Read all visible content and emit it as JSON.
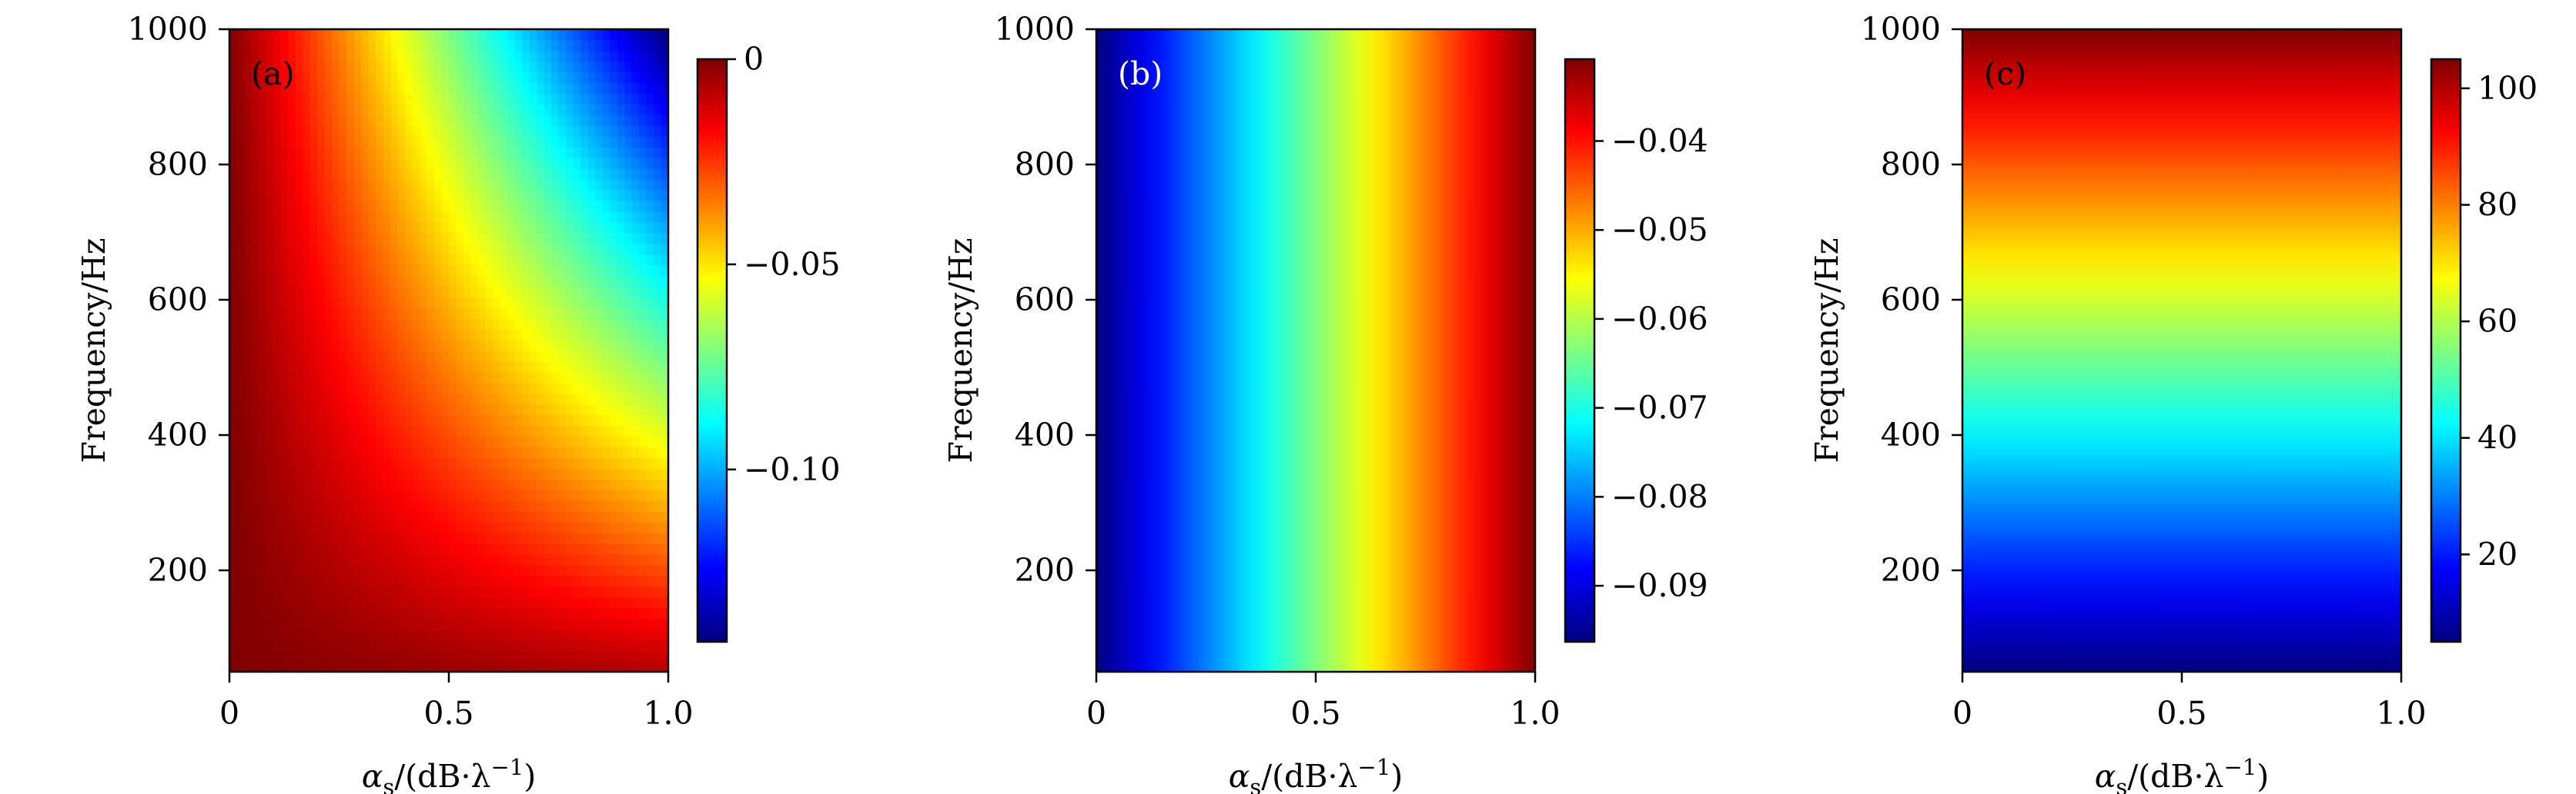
{
  "colormap_jet": [
    "#00007f",
    "#0000ff",
    "#007fff",
    "#00ffff",
    "#7fff7f",
    "#ffff00",
    "#ff7f00",
    "#ff0000",
    "#7f0000"
  ],
  "chart_data": [
    {
      "type": "heatmap",
      "panel_label": "(a)",
      "panel_label_color": "#000000",
      "xlabel": "α_s/(dB·λ^-1)",
      "xlabel_parts": {
        "base": "α",
        "sub": "s",
        "middle": "/(dB·λ",
        "sup": "−1",
        "end": ")"
      },
      "ylabel": "Frequency/Hz",
      "xlim": [
        0,
        1.0
      ],
      "ylim": [
        50,
        1000
      ],
      "xticks": [
        0,
        0.5,
        1.0
      ],
      "xtick_labels": [
        "0",
        "0.5",
        "1.0"
      ],
      "yticks": [
        200,
        400,
        600,
        800,
        1000
      ],
      "ytick_labels": [
        "200",
        "400",
        "600",
        "800",
        "1000"
      ],
      "field": "product",
      "colorbar": {
        "range": [
          -0.142,
          0
        ],
        "ticks": [
          0,
          -0.05,
          -0.1
        ],
        "tick_labels": [
          "0",
          "−0.05",
          "−0.10"
        ]
      }
    },
    {
      "type": "heatmap",
      "panel_label": "(b)",
      "panel_label_color": "#ffffff",
      "xlabel": "α_s/(dB·λ^-1)",
      "xlabel_parts": {
        "base": "α",
        "sub": "s",
        "middle": "/(dB·λ",
        "sup": "−1",
        "end": ")"
      },
      "ylabel": "Frequency/Hz",
      "xlim": [
        0,
        1.0
      ],
      "ylim": [
        50,
        1000
      ],
      "xticks": [
        0,
        0.5,
        1.0
      ],
      "xtick_labels": [
        "0",
        "0.5",
        "1.0"
      ],
      "yticks": [
        200,
        400,
        600,
        800,
        1000
      ],
      "ytick_labels": [
        "200",
        "400",
        "600",
        "800",
        "1000"
      ],
      "field": "x",
      "colorbar": {
        "range": [
          -0.0963,
          -0.0308
        ],
        "ticks": [
          -0.04,
          -0.05,
          -0.06,
          -0.07,
          -0.08,
          -0.09
        ],
        "tick_labels": [
          "−0.04",
          "−0.05",
          "−0.06",
          "−0.07",
          "−0.08",
          "−0.09"
        ]
      }
    },
    {
      "type": "heatmap",
      "panel_label": "(c)",
      "panel_label_color": "#000000",
      "xlabel": "α_s/(dB·λ^-1)",
      "xlabel_parts": {
        "base": "α",
        "sub": "s",
        "middle": "/(dB·λ",
        "sup": "−1",
        "end": ")"
      },
      "ylabel": "Frequency/Hz",
      "xlim": [
        0,
        1.0
      ],
      "ylim": [
        50,
        1000
      ],
      "xticks": [
        0,
        0.5,
        1.0
      ],
      "xtick_labels": [
        "0",
        "0.5",
        "1.0"
      ],
      "yticks": [
        200,
        400,
        600,
        800,
        1000
      ],
      "ytick_labels": [
        "200",
        "400",
        "600",
        "800",
        "1000"
      ],
      "field": "y",
      "colorbar": {
        "range": [
          5,
          105
        ],
        "ticks": [
          20,
          40,
          60,
          80,
          100
        ],
        "tick_labels": [
          "20",
          "40",
          "60",
          "80",
          "100"
        ]
      }
    }
  ]
}
